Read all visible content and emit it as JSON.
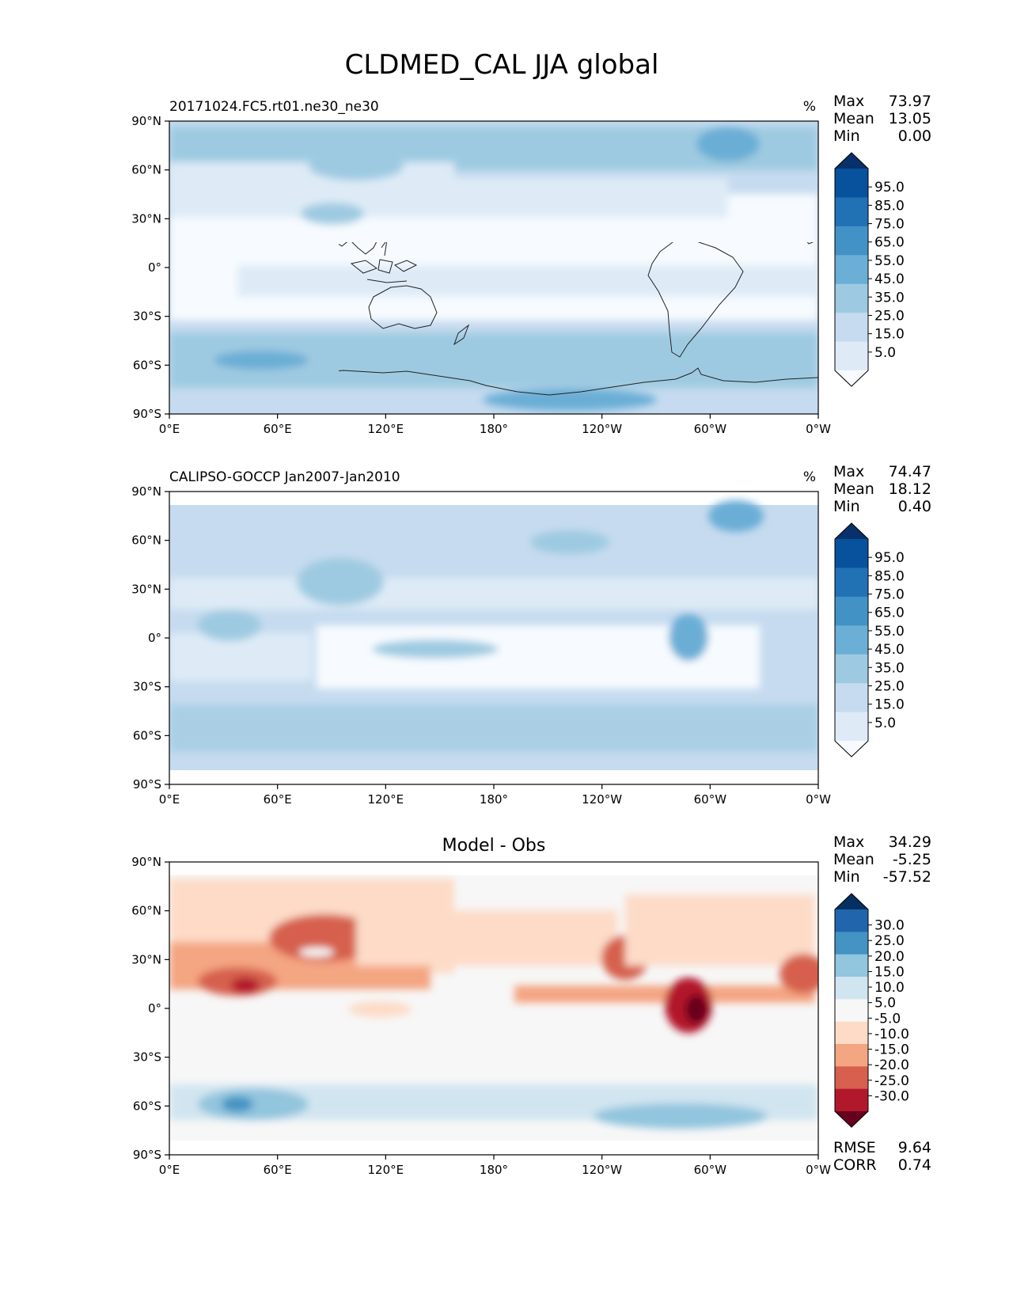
{
  "figure": {
    "title": "CLDMED_CAL JJA global"
  },
  "axis_ticks": {
    "lat": [
      "90°N",
      "60°N",
      "30°N",
      "0°",
      "30°S",
      "60°S",
      "90°S"
    ],
    "lon": [
      "0°E",
      "60°E",
      "120°E",
      "180°",
      "120°W",
      "60°W",
      "0°W"
    ]
  },
  "colors": {
    "sequential": [
      "#f7fbff",
      "#deebf7",
      "#c6dbef",
      "#9ecae1",
      "#6baed6",
      "#4292c6",
      "#2171b5",
      "#08519c",
      "#08306b"
    ],
    "diverging_blue": [
      "#053061",
      "#2166ac",
      "#4393c3",
      "#92c5de",
      "#d1e5f0",
      "#f7f7f7"
    ],
    "diverging_red": [
      "#fddbc7",
      "#f4a582",
      "#d6604d",
      "#b2182b",
      "#67001f"
    ]
  },
  "panels": [
    {
      "title_left": "20171024.FC5.rt01.ne30_ne30",
      "title_center": "",
      "units": "%",
      "stats": [
        {
          "label": "Max",
          "value": "73.97"
        },
        {
          "label": "Mean",
          "value": "13.05"
        },
        {
          "label": "Min",
          "value": "0.00"
        }
      ],
      "colorbar": {
        "type": "sequential",
        "labels": [
          "95.0",
          "85.0",
          "75.0",
          "65.0",
          "55.0",
          "45.0",
          "35.0",
          "25.0",
          "15.0",
          "5.0"
        ]
      },
      "footer": []
    },
    {
      "title_left": "CALIPSO-GOCCP Jan2007-Jan2010",
      "title_center": "",
      "units": "%",
      "stats": [
        {
          "label": "Max",
          "value": "74.47"
        },
        {
          "label": "Mean",
          "value": "18.12"
        },
        {
          "label": "Min",
          "value": "0.40"
        }
      ],
      "colorbar": {
        "type": "sequential",
        "labels": [
          "95.0",
          "85.0",
          "75.0",
          "65.0",
          "55.0",
          "45.0",
          "35.0",
          "25.0",
          "15.0",
          "5.0"
        ]
      },
      "footer": []
    },
    {
      "title_left": "",
      "title_center": "Model - Obs",
      "units": "",
      "stats": [
        {
          "label": "Max",
          "value": "34.29"
        },
        {
          "label": "Mean",
          "value": "-5.25"
        },
        {
          "label": "Min",
          "value": "-57.52"
        }
      ],
      "colorbar": {
        "type": "diverging",
        "labels": [
          "30.0",
          "25.0",
          "20.0",
          "15.0",
          "10.0",
          "5.0",
          "-5.0",
          "-10.0",
          "-15.0",
          "-20.0",
          "-25.0",
          "-30.0"
        ]
      },
      "footer": [
        {
          "label": "RMSE",
          "value": "9.64"
        },
        {
          "label": "CORR",
          "value": "0.74"
        }
      ]
    }
  ]
}
